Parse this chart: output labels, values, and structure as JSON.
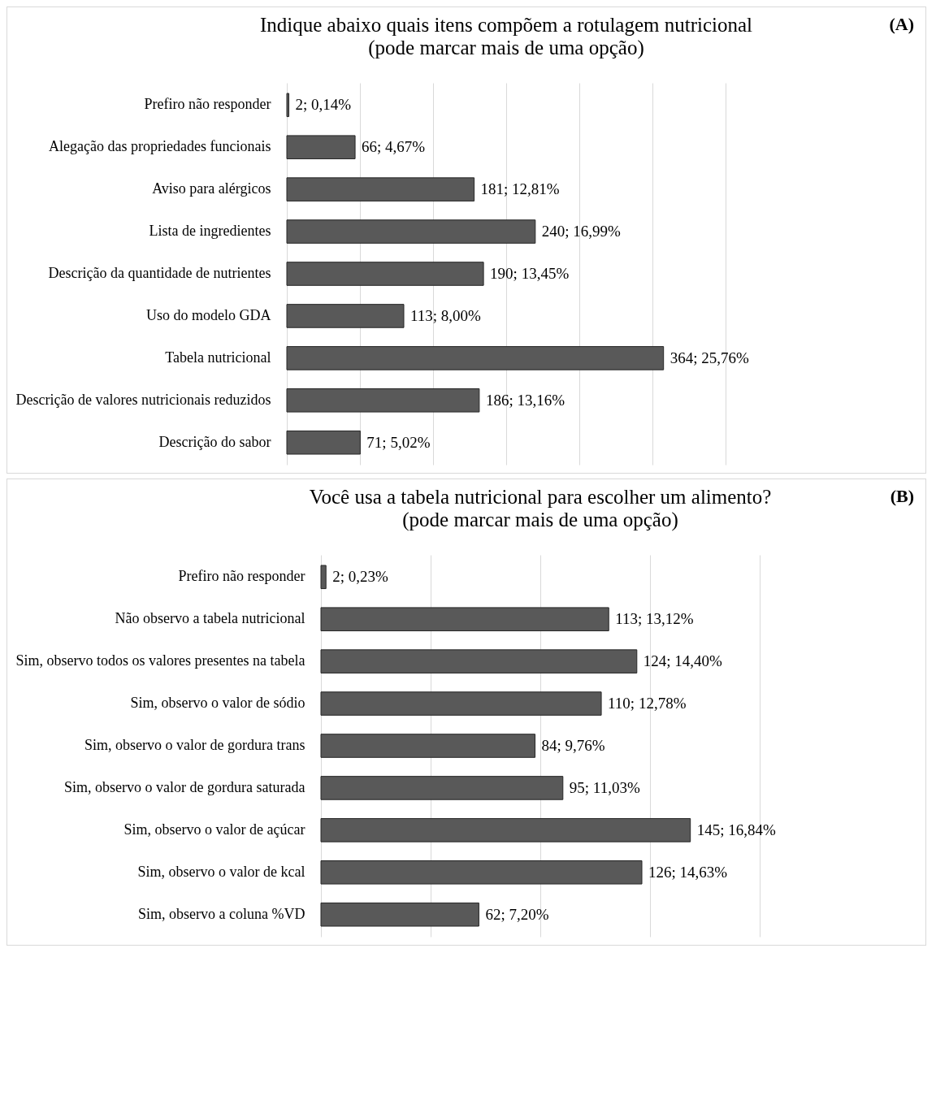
{
  "chart_data": [
    {
      "type": "bar",
      "orientation": "horizontal",
      "title": "Indique abaixo quais itens compõem a rotulagem nutricional",
      "subtitle": "(pode marcar mais de uma opção)",
      "annotations": [
        "(A)"
      ],
      "categories": [
        "Prefiro não responder",
        "Alegação das propriedades funcionais",
        "Aviso para alérgicos",
        "Lista de ingredientes",
        "Descrição da quantidade de nutrientes",
        "Uso do modelo GDA",
        "Tabela nutricional",
        "Descrição de valores nutricionais reduzidos",
        "Descrição do sabor"
      ],
      "values": [
        0.14,
        4.67,
        12.81,
        16.99,
        13.45,
        8.0,
        25.76,
        13.16,
        5.02
      ],
      "value_labels": [
        "2; 0,14%",
        "66; 4,67%",
        "181; 12,81%",
        "240; 16,99%",
        "190; 13,45%",
        "113; 8,00%",
        "364; 25,76%",
        "186; 13,16%",
        "71; 5,02%"
      ],
      "color": "#595959",
      "xlim": [
        0,
        30
      ],
      "xticks": [
        {
          "value": 0,
          "label": null
        },
        {
          "value": 5,
          "label": null
        },
        {
          "value": 10,
          "label": null
        },
        {
          "value": 15,
          "label": null
        },
        {
          "value": 20,
          "label": null
        },
        {
          "value": 25,
          "label": null
        },
        {
          "value": 30,
          "label": null
        }
      ],
      "grid": "x",
      "tick_labels": "y"
    },
    {
      "type": "bar",
      "orientation": "horizontal",
      "title": "Você usa a tabela nutricional para escolher um alimento?",
      "subtitle": "(pode marcar mais de uma opção)",
      "annotations": [
        "(B)"
      ],
      "categories": [
        "Prefiro não responder",
        "Não observo a tabela nutricional",
        "Sim, observo todos os valores presentes na tabela",
        "Sim, observo o valor de sódio",
        "Sim, observo o valor de gordura trans",
        "Sim, observo o valor de gordura saturada",
        "Sim, observo o valor de açúcar",
        "Sim, observo o valor de kcal",
        "Sim, observo a coluna %VD"
      ],
      "values": [
        0.23,
        13.12,
        14.4,
        12.78,
        9.76,
        11.03,
        16.84,
        14.63,
        7.2
      ],
      "value_labels": [
        "2; 0,23%",
        "113; 13,12%",
        "124; 14,40%",
        "110; 12,78%",
        "84; 9,76%",
        "95; 11,03%",
        "145; 16,84%",
        "126; 14,63%",
        "62; 7,20%"
      ],
      "color": "#595959",
      "xlim": [
        0,
        20
      ],
      "xticks": [
        {
          "value": 0,
          "label": null
        },
        {
          "value": 5,
          "label": null
        },
        {
          "value": 10,
          "label": null
        },
        {
          "value": 15,
          "label": null
        },
        {
          "value": 20,
          "label": null
        }
      ],
      "grid": "x",
      "tick_labels": "y"
    }
  ]
}
